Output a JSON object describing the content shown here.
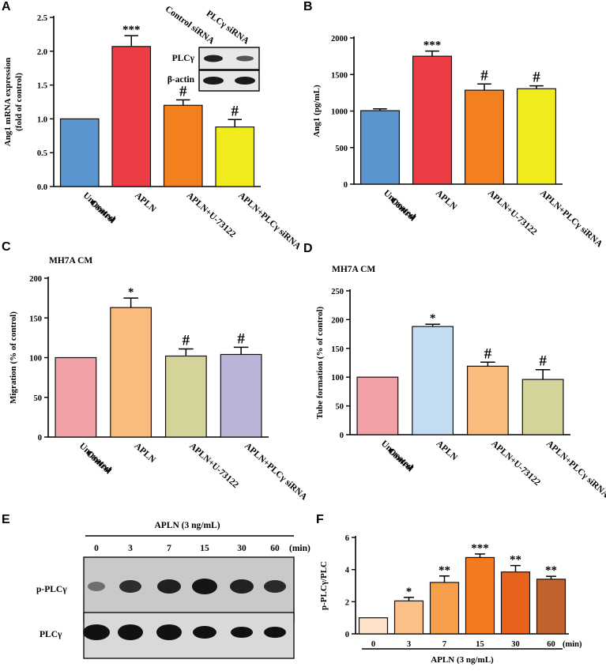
{
  "chart_data": [
    {
      "panel": "A",
      "type": "bar",
      "ylabel_line1": "Ang1 mRNA expression",
      "ylabel_line2": "(fold of control)",
      "ylim": [
        0,
        2.5
      ],
      "yticks": [
        "0.0",
        "0.5",
        "1.0",
        "1.5",
        "2.0",
        "2.5"
      ],
      "categories": [
        [
          "Untreated",
          "Control"
        ],
        [
          "APLN"
        ],
        [
          "APLN+U-73122"
        ],
        [
          "APLN+PLCγ siRNA"
        ]
      ],
      "values": [
        1.0,
        2.07,
        1.2,
        0.88
      ],
      "errors": [
        0,
        0.16,
        0.08,
        0.11
      ],
      "colors": [
        "#5b95cf",
        "#ec3c44",
        "#f3801f",
        "#f3ec1d"
      ],
      "annotations": [
        "",
        "***",
        "#",
        "#"
      ],
      "inset": {
        "row_labels": [
          "PLCγ",
          "β-actin"
        ],
        "col_labels": [
          "Control siRNA",
          "PLCγ siRNA"
        ]
      }
    },
    {
      "panel": "B",
      "type": "bar",
      "ylabel": "Ang1 (pg/mL)",
      "ylim": [
        0,
        2000
      ],
      "yticks": [
        "0",
        "500",
        "1000",
        "1500",
        "2000"
      ],
      "categories": [
        [
          "Untreated",
          "Control"
        ],
        [
          "APLN"
        ],
        [
          "APLN+U-73122"
        ],
        [
          "APLN+PLCγ siRNA"
        ]
      ],
      "values": [
        1005,
        1750,
        1285,
        1305
      ],
      "errors": [
        25,
        70,
        85,
        40
      ],
      "colors": [
        "#5b95cf",
        "#ec3c44",
        "#f3801f",
        "#f3ec1d"
      ],
      "annotations": [
        "",
        "***",
        "#",
        "#"
      ]
    },
    {
      "panel": "C",
      "type": "bar",
      "subtitle": "MH7A CM",
      "ylabel": "Migration (% of control)",
      "ylim": [
        0,
        200
      ],
      "yticks": [
        "0",
        "50",
        "100",
        "150",
        "200"
      ],
      "categories": [
        [
          "Untreated",
          "Control"
        ],
        [
          "APLN"
        ],
        [
          "APLN+U-73122"
        ],
        [
          "APLN+PLCγ siRNA"
        ]
      ],
      "values": [
        100,
        163,
        102,
        104
      ],
      "errors": [
        0,
        12,
        9,
        9
      ],
      "colors": [
        "#f2a1a6",
        "#f9bc7c",
        "#d4d39a",
        "#bbb3d8"
      ],
      "annotations": [
        "",
        "*",
        "#",
        "#"
      ]
    },
    {
      "panel": "D",
      "type": "bar",
      "subtitle": "MH7A CM",
      "ylabel": "Tube formation (% of control)",
      "ylim": [
        0,
        250
      ],
      "yticks": [
        "0",
        "50",
        "100",
        "150",
        "200",
        "250"
      ],
      "categories": [
        [
          "Untreated",
          "Control"
        ],
        [
          "APLN"
        ],
        [
          "APLN+U-73122"
        ],
        [
          "APLN+PLCγ siRNA"
        ]
      ],
      "values": [
        100,
        188,
        119,
        96
      ],
      "errors": [
        0,
        4,
        7,
        17
      ],
      "colors": [
        "#f2a1a6",
        "#c3dcf1",
        "#f9bc7c",
        "#d4d39a"
      ],
      "annotations": [
        "",
        "*",
        "#",
        "#"
      ]
    },
    {
      "panel": "E",
      "type": "blot",
      "title": "APLN (3 ng/mL)",
      "lanes": [
        "0",
        "3",
        "7",
        "15",
        "30",
        "60"
      ],
      "unit": "(min)",
      "row_labels": [
        "p-PLCγ",
        "PLCγ"
      ]
    },
    {
      "panel": "F",
      "type": "bar",
      "ylabel": "p-PLCγ/PLC",
      "xlabel": "APLN (3 ng/mL)",
      "unit": "(min)",
      "ylim": [
        0,
        6
      ],
      "yticks": [
        "0",
        "2",
        "4",
        "6"
      ],
      "categories": [
        "0",
        "3",
        "7",
        "15",
        "30",
        "60"
      ],
      "values": [
        1.0,
        2.05,
        3.2,
        4.75,
        3.85,
        3.4
      ],
      "errors": [
        0,
        0.22,
        0.4,
        0.22,
        0.4,
        0.18
      ],
      "colors": [
        "#fde2c8",
        "#fbc188",
        "#f79e4a",
        "#f27a20",
        "#e8621b",
        "#c0632c"
      ],
      "annotations": [
        "",
        "*",
        "**",
        "***",
        "**",
        "**"
      ]
    }
  ]
}
